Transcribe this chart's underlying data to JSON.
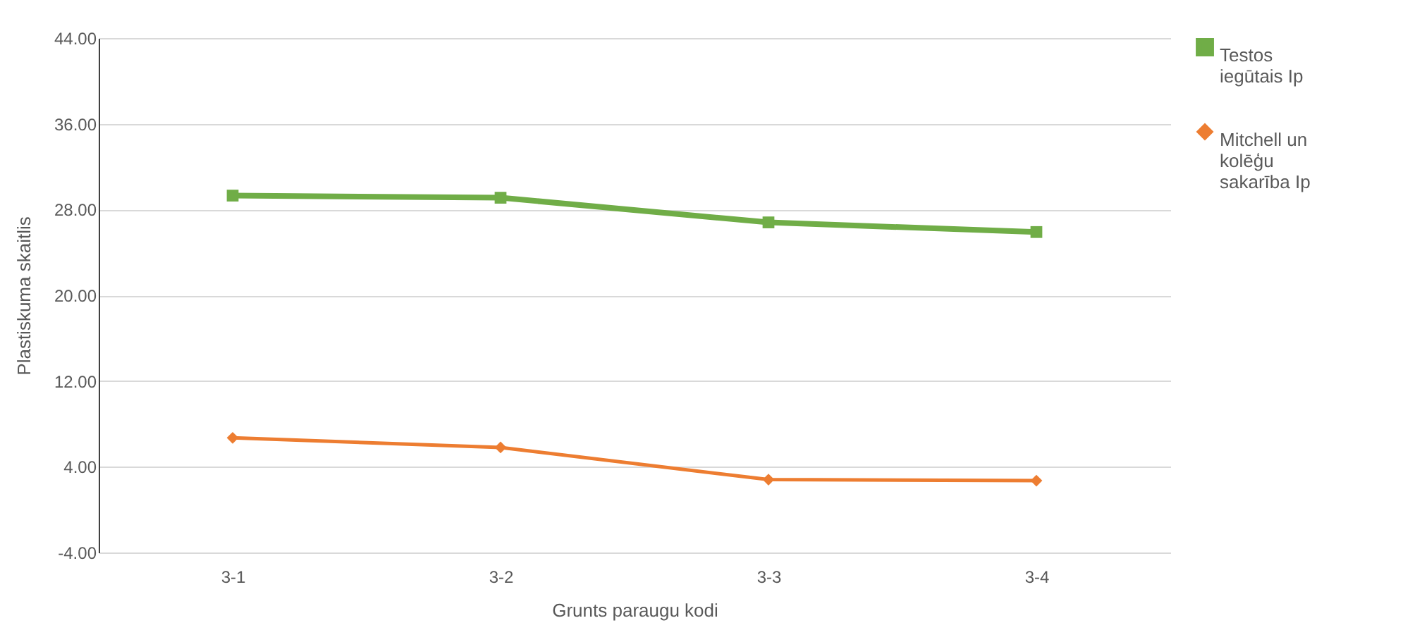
{
  "chart_data": {
    "type": "line",
    "xlabel": "Grunts paraugu kodi",
    "ylabel": "Plastiskuma skaitlis",
    "categories": [
      "3-1",
      "3-2",
      "3-3",
      "3-4"
    ],
    "series": [
      {
        "name": "Testos iegūtais Ip",
        "color": "#70ad47",
        "marker": "square",
        "values": [
          29.3,
          29.1,
          26.8,
          25.9
        ]
      },
      {
        "name": "Mitchell un kolēģu sakarība Ip",
        "color": "#ed7d31",
        "marker": "diamond",
        "values": [
          6.7,
          5.8,
          2.8,
          2.7
        ]
      }
    ],
    "ylim": [
      -4,
      44
    ],
    "yticks": [
      {
        "value": -4,
        "label": "-4.00"
      },
      {
        "value": 4,
        "label": "4.00"
      },
      {
        "value": 12,
        "label": "12.00"
      },
      {
        "value": 20,
        "label": "20.00"
      },
      {
        "value": 28,
        "label": "28.00"
      },
      {
        "value": 36,
        "label": "36.00"
      },
      {
        "value": 44,
        "label": "44.00"
      }
    ],
    "grid": "y",
    "legend": "right",
    "line_style": "solid"
  }
}
